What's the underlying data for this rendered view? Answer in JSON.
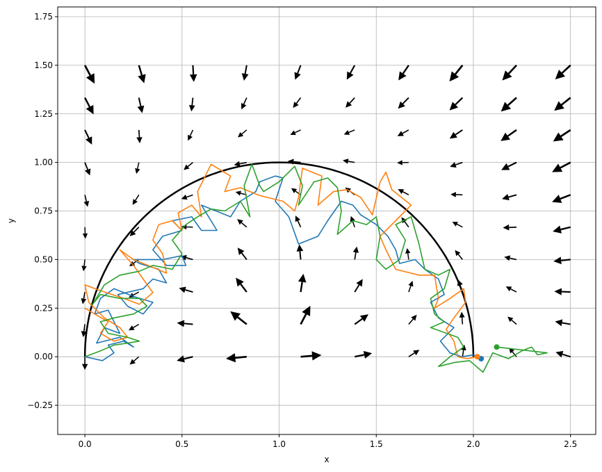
{
  "chart_data": {
    "type": "line",
    "title": "",
    "xlabel": "x",
    "ylabel": "y",
    "xlim": [
      -0.14,
      2.63
    ],
    "ylim": [
      -0.4,
      1.8
    ],
    "xticks": [
      0.0,
      0.5,
      1.0,
      1.5,
      2.0,
      2.5
    ],
    "xtick_labels": [
      "0.0",
      "0.5",
      "1.0",
      "1.5",
      "2.0",
      "2.5"
    ],
    "yticks": [
      -0.25,
      0.0,
      0.25,
      0.5,
      0.75,
      1.0,
      1.25,
      1.5,
      1.75
    ],
    "ytick_labels": [
      "−0.25",
      "0.00",
      "0.25",
      "0.50",
      "0.75",
      "1.00",
      "1.25",
      "1.50",
      "1.75"
    ],
    "grid": true,
    "colors": {
      "series_1": "#1f77b4",
      "series_2": "#ff7f0e",
      "series_3": "#2ca02c",
      "reference": "#000000",
      "grid": "#b0b0b0"
    },
    "reference_curve": {
      "shape": "semicircle",
      "center": [
        1.0,
        0.0
      ],
      "radius": 1.0
    },
    "vector_field": {
      "x": [
        0.0,
        0.278,
        0.556,
        0.833,
        1.111,
        1.389,
        1.667,
        1.944,
        2.222,
        2.5
      ],
      "y": [
        0.0,
        0.167,
        0.333,
        0.5,
        0.667,
        0.833,
        1.0,
        1.167,
        1.333,
        1.5
      ]
    },
    "series": [
      {
        "values": [
          [
            0.0,
            0.0
          ],
          [
            0.09,
            -0.02
          ],
          [
            0.15,
            0.02
          ],
          [
            0.12,
            0.06
          ],
          [
            0.2,
            0.08
          ],
          [
            0.25,
            0.05
          ],
          [
            0.18,
            0.1
          ],
          [
            0.06,
            0.07
          ],
          [
            0.1,
            0.15
          ],
          [
            0.18,
            0.12
          ],
          [
            0.12,
            0.24
          ],
          [
            0.05,
            0.22
          ],
          [
            0.08,
            0.3
          ],
          [
            0.15,
            0.35
          ],
          [
            0.25,
            0.31
          ],
          [
            0.35,
            0.28
          ],
          [
            0.3,
            0.22
          ],
          [
            0.22,
            0.26
          ],
          [
            0.17,
            0.32
          ],
          [
            0.3,
            0.35
          ],
          [
            0.35,
            0.4
          ],
          [
            0.42,
            0.38
          ],
          [
            0.38,
            0.45
          ],
          [
            0.28,
            0.48
          ],
          [
            0.25,
            0.5
          ],
          [
            0.4,
            0.5
          ],
          [
            0.5,
            0.52
          ],
          [
            0.52,
            0.47
          ],
          [
            0.42,
            0.47
          ],
          [
            0.35,
            0.55
          ],
          [
            0.4,
            0.62
          ],
          [
            0.5,
            0.65
          ],
          [
            0.45,
            0.7
          ],
          [
            0.55,
            0.72
          ],
          [
            0.6,
            0.65
          ],
          [
            0.68,
            0.65
          ],
          [
            0.6,
            0.78
          ],
          [
            0.75,
            0.72
          ],
          [
            0.8,
            0.8
          ],
          [
            0.88,
            0.85
          ],
          [
            0.9,
            0.9
          ],
          [
            0.98,
            0.93
          ],
          [
            1.02,
            0.92
          ],
          [
            0.98,
            0.8
          ],
          [
            1.05,
            0.72
          ],
          [
            1.1,
            0.58
          ],
          [
            1.2,
            0.62
          ],
          [
            1.25,
            0.7
          ],
          [
            1.32,
            0.8
          ],
          [
            1.38,
            0.78
          ],
          [
            1.42,
            0.73
          ],
          [
            1.5,
            0.68
          ],
          [
            1.56,
            0.62
          ],
          [
            1.6,
            0.55
          ],
          [
            1.62,
            0.48
          ],
          [
            1.7,
            0.5
          ],
          [
            1.75,
            0.45
          ],
          [
            1.82,
            0.4
          ],
          [
            1.85,
            0.32
          ],
          [
            1.78,
            0.28
          ],
          [
            1.82,
            0.2
          ],
          [
            1.9,
            0.15
          ],
          [
            1.83,
            0.08
          ],
          [
            1.88,
            0.02
          ],
          [
            1.94,
            0.0
          ],
          [
            2.0,
            0.01
          ],
          [
            2.04,
            -0.01
          ]
        ]
      },
      {
        "values": [
          [
            0.0,
            0.25
          ],
          [
            0.05,
            0.22
          ],
          [
            0.12,
            0.18
          ],
          [
            0.08,
            0.12
          ],
          [
            0.15,
            0.08
          ],
          [
            0.22,
            0.1
          ],
          [
            0.18,
            0.15
          ],
          [
            0.1,
            0.2
          ],
          [
            0.02,
            0.28
          ],
          [
            0.0,
            0.37
          ],
          [
            0.08,
            0.34
          ],
          [
            0.2,
            0.3
          ],
          [
            0.28,
            0.27
          ],
          [
            0.35,
            0.33
          ],
          [
            0.3,
            0.4
          ],
          [
            0.25,
            0.47
          ],
          [
            0.18,
            0.55
          ],
          [
            0.25,
            0.5
          ],
          [
            0.35,
            0.46
          ],
          [
            0.42,
            0.43
          ],
          [
            0.4,
            0.53
          ],
          [
            0.35,
            0.6
          ],
          [
            0.38,
            0.68
          ],
          [
            0.45,
            0.7
          ],
          [
            0.5,
            0.65
          ],
          [
            0.48,
            0.74
          ],
          [
            0.55,
            0.78
          ],
          [
            0.6,
            0.72
          ],
          [
            0.58,
            0.85
          ],
          [
            0.65,
            0.99
          ],
          [
            0.75,
            0.93
          ],
          [
            0.72,
            0.85
          ],
          [
            0.8,
            0.87
          ],
          [
            0.9,
            0.83
          ],
          [
            1.02,
            0.8
          ],
          [
            1.08,
            0.75
          ],
          [
            1.1,
            0.82
          ],
          [
            1.12,
            0.97
          ],
          [
            1.22,
            0.93
          ],
          [
            1.2,
            0.78
          ],
          [
            1.28,
            0.85
          ],
          [
            1.35,
            0.86
          ],
          [
            1.42,
            0.82
          ],
          [
            1.48,
            0.73
          ],
          [
            1.52,
            0.9
          ],
          [
            1.55,
            0.95
          ],
          [
            1.58,
            0.86
          ],
          [
            1.68,
            0.78
          ],
          [
            1.6,
            0.7
          ],
          [
            1.52,
            0.62
          ],
          [
            1.55,
            0.55
          ],
          [
            1.6,
            0.45
          ],
          [
            1.72,
            0.42
          ],
          [
            1.8,
            0.42
          ],
          [
            1.82,
            0.3
          ],
          [
            1.8,
            0.25
          ],
          [
            1.88,
            0.3
          ],
          [
            1.95,
            0.35
          ],
          [
            1.96,
            0.28
          ],
          [
            1.9,
            0.2
          ],
          [
            1.86,
            0.14
          ],
          [
            1.9,
            0.08
          ],
          [
            1.92,
            0.0
          ],
          [
            1.97,
            -0.01
          ],
          [
            2.02,
            0.0
          ]
        ]
      },
      {
        "values": [
          [
            0.0,
            0.0
          ],
          [
            0.08,
            0.03
          ],
          [
            0.15,
            0.06
          ],
          [
            0.22,
            0.07
          ],
          [
            0.28,
            0.08
          ],
          [
            0.22,
            0.1
          ],
          [
            0.12,
            0.12
          ],
          [
            0.08,
            0.18
          ],
          [
            0.15,
            0.2
          ],
          [
            0.25,
            0.22
          ],
          [
            0.32,
            0.26
          ],
          [
            0.28,
            0.3
          ],
          [
            0.18,
            0.3
          ],
          [
            0.08,
            0.32
          ],
          [
            0.04,
            0.27
          ],
          [
            0.1,
            0.37
          ],
          [
            0.18,
            0.42
          ],
          [
            0.28,
            0.44
          ],
          [
            0.35,
            0.47
          ],
          [
            0.45,
            0.45
          ],
          [
            0.5,
            0.53
          ],
          [
            0.45,
            0.6
          ],
          [
            0.52,
            0.68
          ],
          [
            0.58,
            0.72
          ],
          [
            0.65,
            0.76
          ],
          [
            0.72,
            0.75
          ],
          [
            0.8,
            0.8
          ],
          [
            0.85,
            0.72
          ],
          [
            0.82,
            0.88
          ],
          [
            0.86,
            0.99
          ],
          [
            0.9,
            0.88
          ],
          [
            0.92,
            0.85
          ],
          [
            1.0,
            0.9
          ],
          [
            1.05,
            0.95
          ],
          [
            1.08,
            0.98
          ],
          [
            1.12,
            0.88
          ],
          [
            1.1,
            0.78
          ],
          [
            1.18,
            0.9
          ],
          [
            1.25,
            0.92
          ],
          [
            1.3,
            0.87
          ],
          [
            1.32,
            0.75
          ],
          [
            1.3,
            0.63
          ],
          [
            1.38,
            0.7
          ],
          [
            1.45,
            0.68
          ],
          [
            1.5,
            0.72
          ],
          [
            1.52,
            0.62
          ],
          [
            1.5,
            0.5
          ],
          [
            1.55,
            0.45
          ],
          [
            1.62,
            0.5
          ],
          [
            1.65,
            0.6
          ],
          [
            1.6,
            0.68
          ],
          [
            1.68,
            0.72
          ],
          [
            1.72,
            0.58
          ],
          [
            1.75,
            0.45
          ],
          [
            1.82,
            0.42
          ],
          [
            1.88,
            0.45
          ],
          [
            1.85,
            0.35
          ],
          [
            1.78,
            0.3
          ],
          [
            1.8,
            0.22
          ],
          [
            1.85,
            0.18
          ],
          [
            1.78,
            0.15
          ],
          [
            1.92,
            0.1
          ],
          [
            1.95,
            0.05
          ],
          [
            1.88,
            0.0
          ],
          [
            1.82,
            -0.05
          ],
          [
            1.9,
            -0.03
          ],
          [
            1.98,
            -0.02
          ],
          [
            2.05,
            -0.08
          ],
          [
            2.1,
            0.02
          ],
          [
            2.18,
            -0.01
          ],
          [
            2.25,
            0.03
          ],
          [
            2.3,
            0.05
          ],
          [
            2.33,
            0.01
          ],
          [
            2.38,
            0.02
          ],
          [
            2.12,
            0.05
          ]
        ]
      }
    ]
  }
}
